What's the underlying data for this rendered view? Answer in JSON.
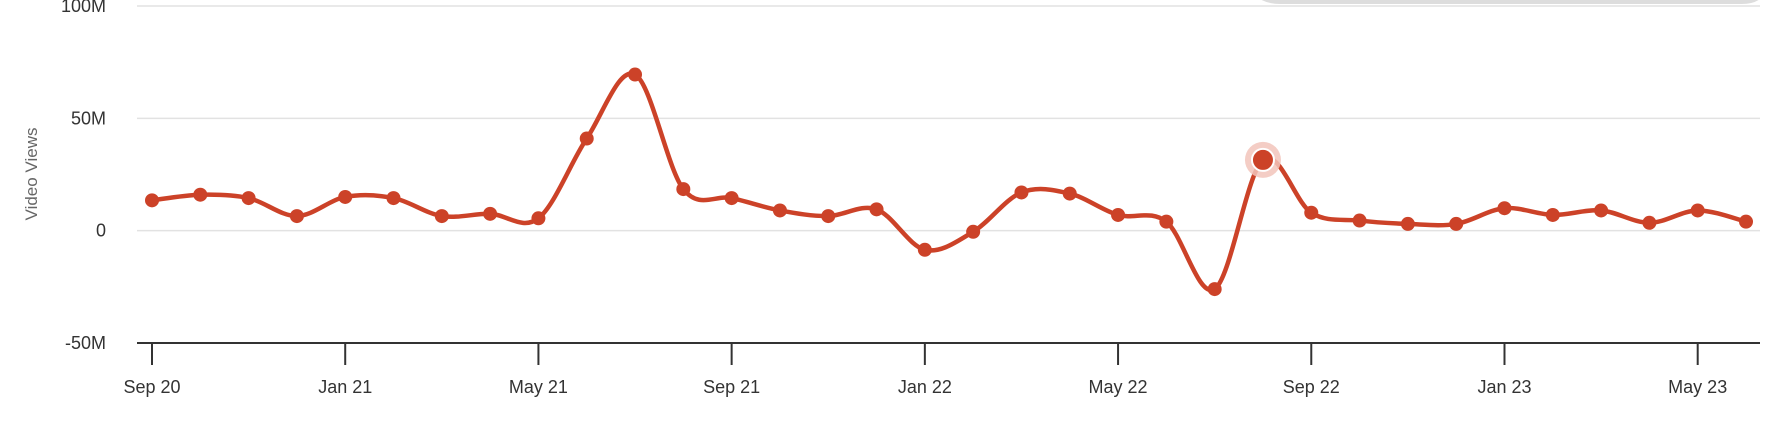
{
  "chart_data": {
    "type": "line",
    "title": "",
    "xlabel": "",
    "ylabel": "Video Views",
    "ylim": [
      -50000000,
      100000000
    ],
    "y_ticks": [
      {
        "value": 100000000,
        "label": "100M"
      },
      {
        "value": 50000000,
        "label": "50M"
      },
      {
        "value": 0,
        "label": "0"
      },
      {
        "value": -50000000,
        "label": "-50M"
      }
    ],
    "x_ticks": [
      "Sep 20",
      "Jan 21",
      "May 21",
      "Sep 21",
      "Jan 22",
      "May 22",
      "Sep 22",
      "Jan 23",
      "May 23"
    ],
    "grid": true,
    "legend": "none",
    "line_color": "#cc4228",
    "highlight_color": "#f2c4bb",
    "highlight_index": 23,
    "x": [
      "2020-09",
      "2020-10",
      "2020-11",
      "2020-12",
      "2021-01",
      "2021-02",
      "2021-03",
      "2021-04",
      "2021-05",
      "2021-06",
      "2021-07",
      "2021-08",
      "2021-09",
      "2021-10",
      "2021-11",
      "2021-12",
      "2022-01",
      "2022-02",
      "2022-03",
      "2022-04",
      "2022-05",
      "2022-06",
      "2022-07",
      "2022-08",
      "2022-09",
      "2022-10",
      "2022-11",
      "2022-12",
      "2023-01",
      "2023-02",
      "2023-03",
      "2023-04",
      "2023-05",
      "2023-06"
    ],
    "series": [
      {
        "values": [
          13500000,
          16000000,
          14500000,
          6500000,
          15000000,
          14500000,
          6500000,
          7500000,
          5500000,
          41000000,
          69500000,
          18500000,
          14500000,
          9000000,
          6500000,
          9500000,
          -8500000,
          -500000,
          17000000,
          16500000,
          7000000,
          4000000,
          -26000000,
          31500000,
          8000000,
          4500000,
          3000000,
          3000000,
          10000000,
          7000000,
          9000000,
          3500000,
          9000000,
          4000000
        ]
      }
    ]
  }
}
